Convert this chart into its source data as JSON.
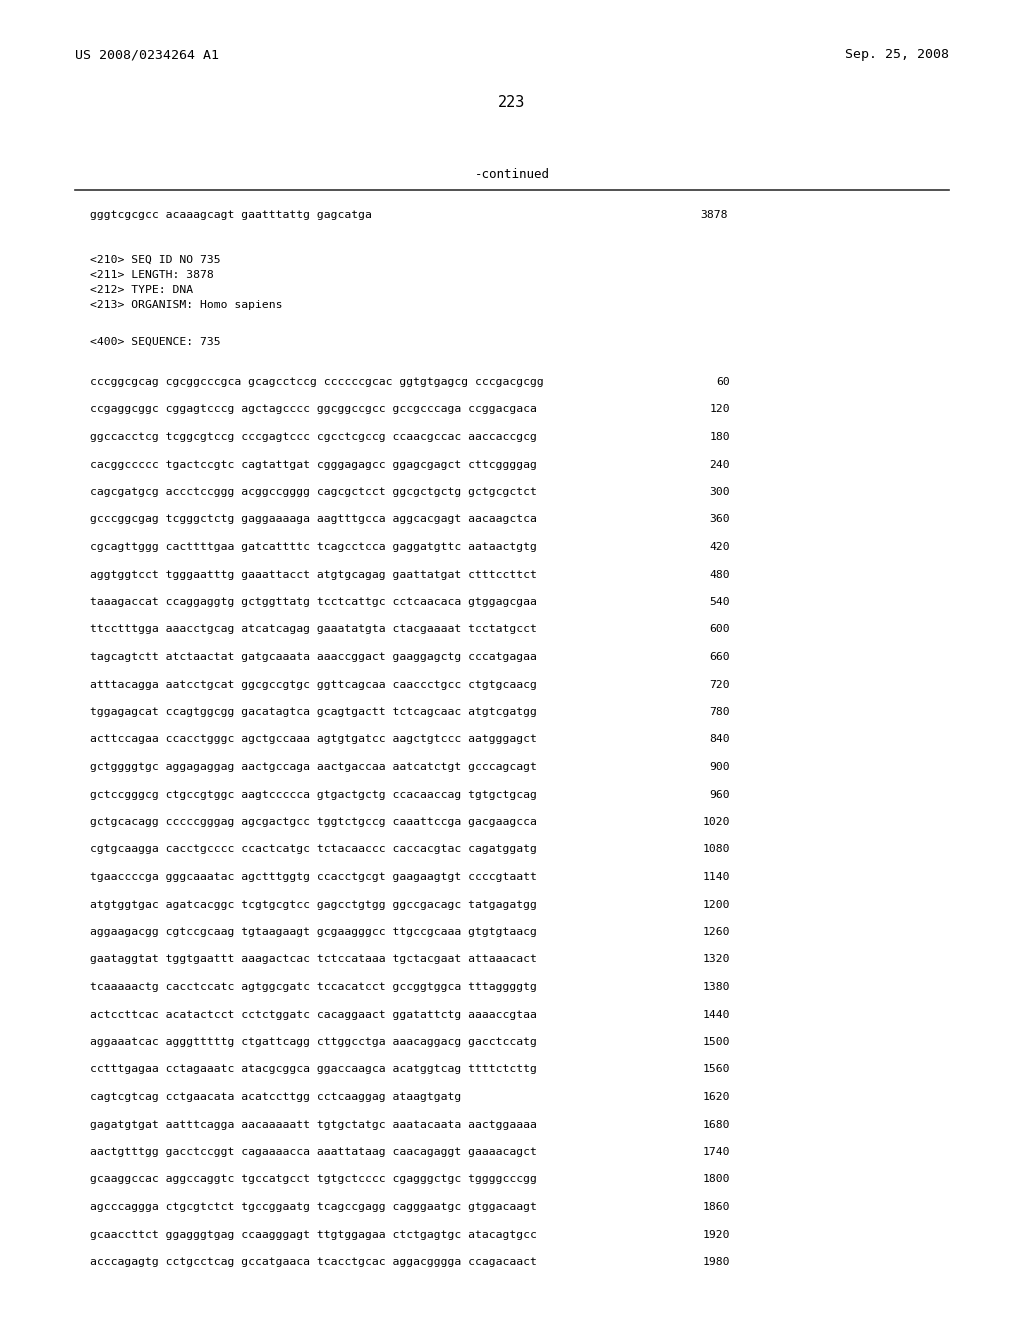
{
  "header_left": "US 2008/0234264 A1",
  "header_right": "Sep. 25, 2008",
  "page_number": "223",
  "continued_text": "-continued",
  "background_color": "#ffffff",
  "text_color": "#000000",
  "intro_sequence": "gggtcgcgcc acaaagcagt gaatttattg gagcatga",
  "intro_number": "3878",
  "metadata": [
    "<210> SEQ ID NO 735",
    "<211> LENGTH: 3878",
    "<212> TYPE: DNA",
    "<213> ORGANISM: Homo sapiens"
  ],
  "sequence_header": "<400> SEQUENCE: 735",
  "sequences": [
    [
      "cccggcgcag cgcggcccgca gcagcctccg ccccccgcac ggtgtgagcg cccgacgcgg",
      "60"
    ],
    [
      "ccgaggcggc cggagtcccg agctagcccc ggcggccgcc gccgcccaga ccggacgaca",
      "120"
    ],
    [
      "ggccacctcg tcggcgtccg cccgagtccc cgcctcgccg ccaacgccac aaccaccgcg",
      "180"
    ],
    [
      "cacggccccc tgactccgtc cagtattgat cgggagagcc ggagcgagct cttcggggag",
      "240"
    ],
    [
      "cagcgatgcg accctccggg acggccgggg cagcgctcct ggcgctgctg gctgcgctct",
      "300"
    ],
    [
      "gcccggcgag tcgggctctg gaggaaaaga aagtttgcca aggcacgagt aacaagctca",
      "360"
    ],
    [
      "cgcagttggg cacttttgaa gatcattttc tcagcctcca gaggatgttc aataactgtg",
      "420"
    ],
    [
      "aggtggtcct tgggaatttg gaaattacct atgtgcagag gaattatgat ctttccttct",
      "480"
    ],
    [
      "taaagaccat ccaggaggtg gctggttatg tcctcattgc cctcaacaca gtggagcgaa",
      "540"
    ],
    [
      "ttcctttgga aaacctgcag atcatcagag gaaatatgta ctacgaaaat tcctatgcct",
      "600"
    ],
    [
      "tagcagtctt atctaactat gatgcaaata aaaccggact gaaggagctg cccatgagaa",
      "660"
    ],
    [
      "atttacagga aatcctgcat ggcgccgtgc ggttcagcaa caaccctgcc ctgtgcaacg",
      "720"
    ],
    [
      "tggagagcat ccagtggcgg gacatagtca gcagtgactt tctcagcaac atgtcgatgg",
      "780"
    ],
    [
      "acttccagaa ccacctgggc agctgccaaa agtgtgatcc aagctgtccc aatgggagct",
      "840"
    ],
    [
      "gctggggtgc aggagaggag aactgccaga aactgaccaa aatcatctgt gcccagcagt",
      "900"
    ],
    [
      "gctccgggcg ctgccgtggc aagtccccca gtgactgctg ccacaaccag tgtgctgcag",
      "960"
    ],
    [
      "gctgcacagg cccccgggag agcgactgcc tggtctgccg caaattccga gacgaagcca",
      "1020"
    ],
    [
      "cgtgcaagga cacctgcccc ccactcatgc tctacaaccc caccacgtac cagatggatg",
      "1080"
    ],
    [
      "tgaaccccga gggcaaatac agctttggtg ccacctgcgt gaagaagtgt ccccgtaatt",
      "1140"
    ],
    [
      "atgtggtgac agatcacggc tcgtgcgtcc gagcctgtgg ggccgacagc tatgagatgg",
      "1200"
    ],
    [
      "aggaagacgg cgtccgcaag tgtaagaagt gcgaagggcc ttgccgcaaa gtgtgtaacg",
      "1260"
    ],
    [
      "gaataggtat tggtgaattt aaagactcac tctccataaa tgctacgaat attaaacact",
      "1320"
    ],
    [
      "tcaaaaactg cacctccatc agtggcgatc tccacatcct gccggtggca tttaggggtg",
      "1380"
    ],
    [
      "actccttcac acatactcct cctctggatc cacaggaact ggatattctg aaaaccgtaa",
      "1440"
    ],
    [
      "aggaaatcac agggtttttg ctgattcagg cttggcctga aaacaggacg gacctccatg",
      "1500"
    ],
    [
      "cctttgagaa cctagaaatc atacgcggca ggaccaagca acatggtcag ttttctcttg",
      "1560"
    ],
    [
      "cagtcgtcag cctgaacata acatccttgg cctcaaggag ataagtgatg",
      "1620"
    ],
    [
      "gagatgtgat aatttcagga aacaaaaatt tgtgctatgc aaatacaata aactggaaaa",
      "1680"
    ],
    [
      "aactgtttgg gacctccggt cagaaaacca aaattataag caacagaggt gaaaacagct",
      "1740"
    ],
    [
      "gcaaggccac aggccaggtc tgccatgcct tgtgctcccc cgagggctgc tggggcccgg",
      "1800"
    ],
    [
      "agcccaggga ctgcgtctct tgccggaatg tcagccgagg cagggaatgc gtggacaagt",
      "1860"
    ],
    [
      "gcaaccttct ggagggtgag ccaagggagt ttgtggagaa ctctgagtgc atacagtgcc",
      "1920"
    ],
    [
      "acccagagtg cctgcctcag gccatgaaca tcacctgcac aggacgggga ccagacaact",
      "1980"
    ]
  ]
}
